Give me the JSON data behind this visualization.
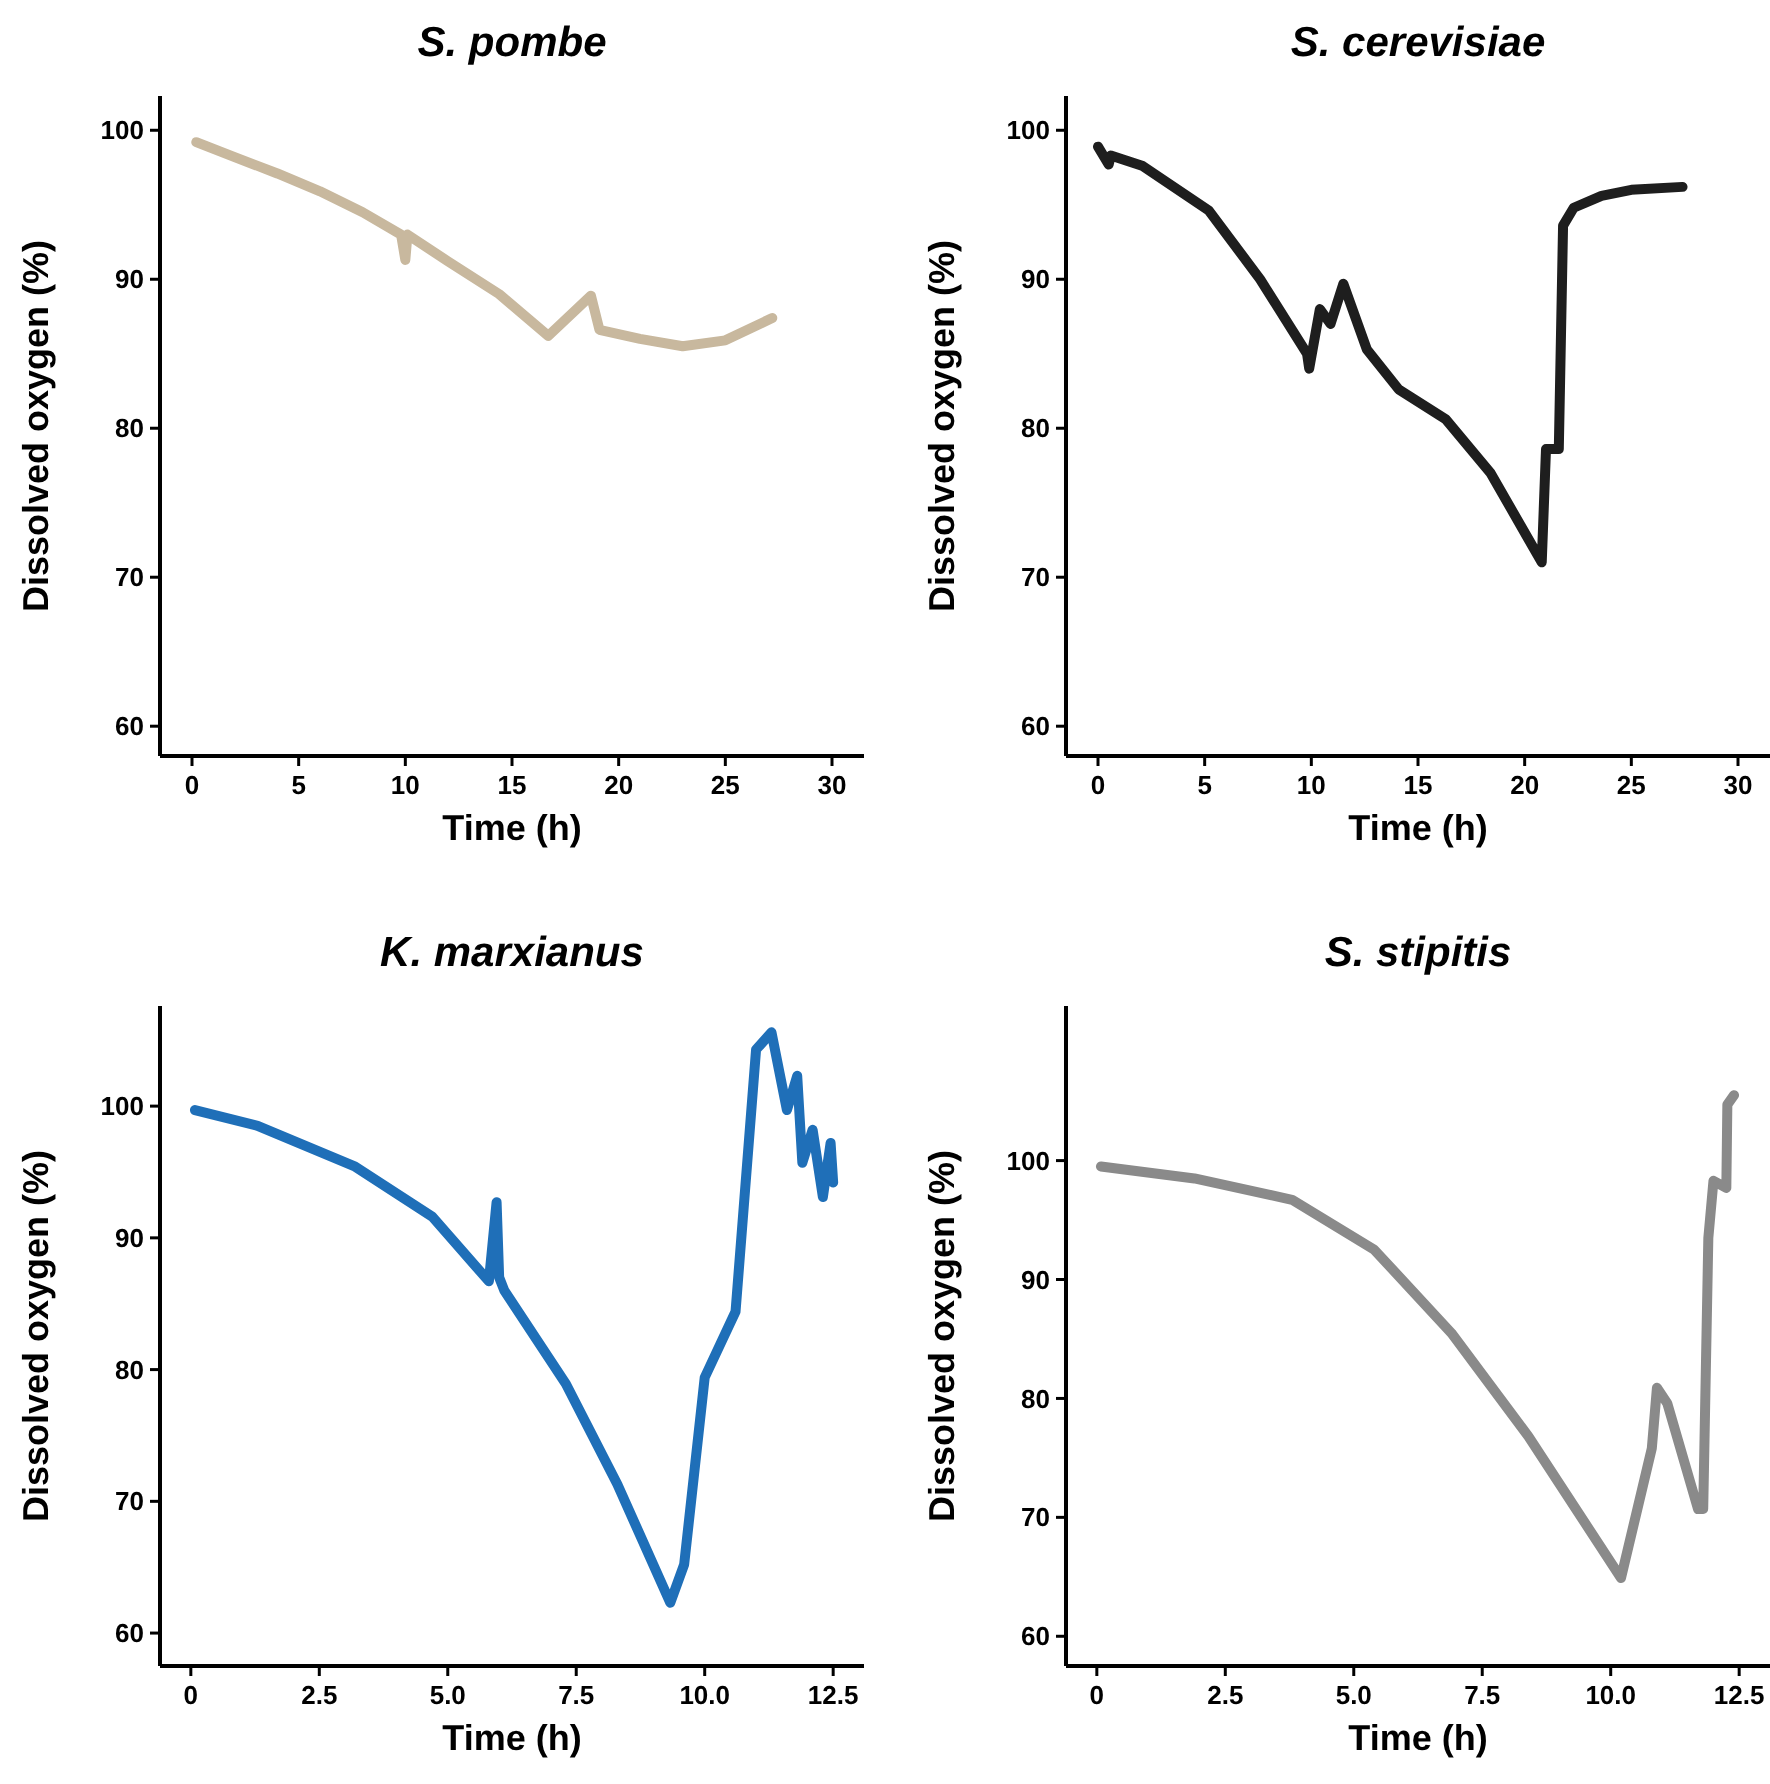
{
  "chart_data": [
    {
      "type": "line",
      "title": "S. pombe",
      "xlabel": "Time (h)",
      "ylabel": "Dissolved oxygen (%)",
      "xlim": [
        -1.5,
        31.5
      ],
      "ylim": [
        58,
        102.3
      ],
      "xticks": [
        0,
        5,
        10,
        15,
        20,
        25,
        30
      ],
      "yticks": [
        60,
        70,
        80,
        90,
        100
      ],
      "grid": false,
      "line_style": "solid",
      "marker": "none",
      "series": [
        {
          "color": "#c8b89e",
          "x": [
            0.2,
            2,
            4,
            6,
            8,
            9.8,
            10,
            10.1,
            12,
            14.4,
            16.7,
            18.7,
            19.1,
            21,
            23,
            25,
            27.2
          ],
          "values": [
            99.2,
            98.2,
            97.1,
            95.9,
            94.5,
            93.0,
            91.3,
            93.0,
            91.2,
            89.0,
            86.2,
            88.9,
            86.6,
            86.0,
            85.5,
            85.9,
            87.4
          ]
        }
      ]
    },
    {
      "type": "line",
      "title": "S. cerevisiae",
      "xlabel": "Time (h)",
      "ylabel": "Dissolved oxygen (%)",
      "xlim": [
        -1.5,
        31.5
      ],
      "ylim": [
        58,
        102.3
      ],
      "xticks": [
        0,
        5,
        10,
        15,
        20,
        25,
        30
      ],
      "yticks": [
        60,
        70,
        80,
        90,
        100
      ],
      "grid": false,
      "line_style": "solid",
      "marker": "none",
      "series": [
        {
          "color": "#1e1e1e",
          "x": [
            0,
            0.5,
            0.6,
            2.1,
            5.2,
            7.6,
            9.8,
            9.9,
            10.4,
            10.9,
            11.5,
            12.6,
            14.1,
            16.3,
            18.4,
            20.8,
            21,
            21.6,
            21.8,
            22.3,
            23.6,
            25,
            27.4
          ],
          "values": [
            98.9,
            97.7,
            98.3,
            97.6,
            94.6,
            90,
            85,
            84,
            88,
            87,
            89.7,
            85.3,
            82.6,
            80.6,
            77,
            71,
            78.6,
            78.6,
            93.6,
            94.8,
            95.6,
            96,
            96.2
          ]
        }
      ]
    },
    {
      "type": "line",
      "title": "K. marxianus",
      "xlabel": "Time (h)",
      "ylabel": "Dissolved oxygen (%)",
      "xlim": [
        -0.6,
        13.1
      ],
      "ylim": [
        57.5,
        107.6
      ],
      "xticks": [
        0,
        {
          "value": 2.5,
          "label": "2.5"
        },
        {
          "value": 5,
          "label": "5.0"
        },
        {
          "value": 7.5,
          "label": "7.5"
        },
        {
          "value": 10,
          "label": "10.0"
        },
        {
          "value": 12.5,
          "label": "12.5"
        }
      ],
      "yticks": [
        60,
        70,
        80,
        90,
        100
      ],
      "grid": false,
      "line_style": "solid",
      "marker": "none",
      "series": [
        {
          "color": "#1f6fb8",
          "x": [
            0.08,
            1.3,
            3.2,
            4.7,
            5.8,
            5.95,
            6.0,
            6.1,
            7.3,
            8.3,
            9.33,
            9.6,
            10,
            10.6,
            11,
            11.3,
            11.6,
            11.8,
            11.9,
            12.1,
            12.3,
            12.45,
            12.5
          ],
          "values": [
            99.7,
            98.5,
            95.4,
            91.6,
            86.7,
            92.7,
            87,
            86,
            78.9,
            71.3,
            62.3,
            65.2,
            79.4,
            84.4,
            104.3,
            105.6,
            99.7,
            102.3,
            95.7,
            98.2,
            93.1,
            97.2,
            94.2
          ]
        }
      ]
    },
    {
      "type": "line",
      "title": "S. stipitis",
      "xlabel": "Time (h)",
      "ylabel": "Dissolved oxygen (%)",
      "xlim": [
        -0.6,
        13.1
      ],
      "ylim": [
        57.5,
        113
      ],
      "xticks": [
        0,
        {
          "value": 2.5,
          "label": "2.5"
        },
        {
          "value": 5,
          "label": "5.0"
        },
        {
          "value": 7.5,
          "label": "7.5"
        },
        {
          "value": 10,
          "label": "10.0"
        },
        {
          "value": 12.5,
          "label": "12.5"
        }
      ],
      "yticks": [
        60,
        70,
        80,
        90,
        100
      ],
      "grid": false,
      "line_style": "solid",
      "marker": "none",
      "series": [
        {
          "color": "#8a8a8a",
          "x": [
            0.08,
            1.9,
            3.8,
            5.4,
            6.9,
            8.4,
            10.2,
            10.8,
            10.9,
            11.1,
            11.7,
            11.8,
            11.9,
            12.0,
            12.25,
            12.27,
            12.4
          ],
          "values": [
            99.5,
            98.5,
            96.7,
            92.5,
            85.5,
            76.8,
            64.9,
            75.8,
            80.9,
            79.6,
            70.7,
            70.7,
            93.5,
            98.3,
            97.7,
            104.7,
            105.5
          ]
        }
      ]
    }
  ]
}
